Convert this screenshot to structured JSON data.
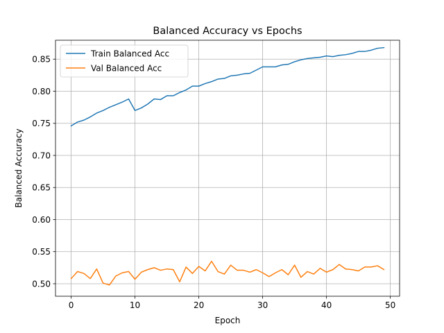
{
  "chart_data": {
    "type": "line",
    "title": "Balanced Accuracy vs Epochs",
    "xlabel": "Epoch",
    "ylabel": "Balanced Accuracy",
    "xlim": [
      -2.45,
      51.45
    ],
    "ylim": [
      0.4805,
      0.8795
    ],
    "xticks": [
      0,
      10,
      20,
      30,
      40,
      50
    ],
    "yticks": [
      0.5,
      0.55,
      0.6,
      0.65,
      0.7,
      0.75,
      0.8,
      0.85
    ],
    "xtick_labels": [
      "0",
      "10",
      "20",
      "30",
      "40",
      "50"
    ],
    "ytick_labels": [
      "0.50",
      "0.55",
      "0.60",
      "0.65",
      "0.70",
      "0.75",
      "0.80",
      "0.85"
    ],
    "grid": true,
    "legend": "upper-left",
    "x": [
      0,
      1,
      2,
      3,
      4,
      5,
      6,
      7,
      8,
      9,
      10,
      11,
      12,
      13,
      14,
      15,
      16,
      17,
      18,
      19,
      20,
      21,
      22,
      23,
      24,
      25,
      26,
      27,
      28,
      29,
      30,
      31,
      32,
      33,
      34,
      35,
      36,
      37,
      38,
      39,
      40,
      41,
      42,
      43,
      44,
      45,
      46,
      47,
      48,
      49
    ],
    "series": [
      {
        "name": "Train Balanced Acc",
        "color": "#1f77b4",
        "values": [
          0.746,
          0.752,
          0.755,
          0.76,
          0.766,
          0.77,
          0.775,
          0.779,
          0.783,
          0.788,
          0.77,
          0.774,
          0.78,
          0.788,
          0.787,
          0.793,
          0.793,
          0.798,
          0.802,
          0.808,
          0.808,
          0.812,
          0.815,
          0.819,
          0.82,
          0.824,
          0.825,
          0.827,
          0.828,
          0.833,
          0.838,
          0.838,
          0.838,
          0.841,
          0.842,
          0.846,
          0.849,
          0.851,
          0.852,
          0.853,
          0.855,
          0.854,
          0.856,
          0.857,
          0.859,
          0.862,
          0.862,
          0.864,
          0.867,
          0.868
        ]
      },
      {
        "name": "Val Balanced Acc",
        "color": "#ff7f0e",
        "values": [
          0.508,
          0.519,
          0.516,
          0.508,
          0.523,
          0.501,
          0.498,
          0.512,
          0.517,
          0.519,
          0.507,
          0.518,
          0.522,
          0.525,
          0.521,
          0.523,
          0.522,
          0.503,
          0.526,
          0.516,
          0.527,
          0.52,
          0.535,
          0.519,
          0.515,
          0.529,
          0.521,
          0.521,
          0.518,
          0.522,
          0.517,
          0.511,
          0.517,
          0.522,
          0.514,
          0.529,
          0.51,
          0.519,
          0.515,
          0.524,
          0.518,
          0.522,
          0.53,
          0.523,
          0.522,
          0.52,
          0.526,
          0.526,
          0.528,
          0.522
        ]
      }
    ]
  }
}
